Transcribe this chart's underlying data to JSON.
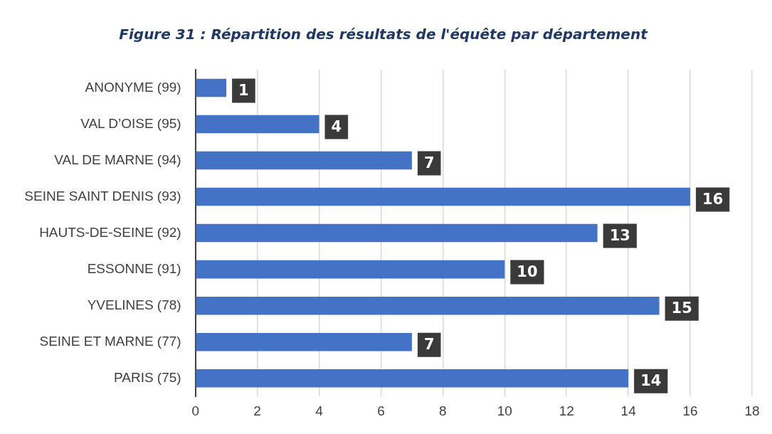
{
  "chart_data": {
    "type": "bar",
    "orientation": "horizontal",
    "title": "Figure 31 : Répartition des résultats de l'équête par département",
    "categories": [
      "ANONYME (99)",
      "VAL D’OISE (95)",
      "VAL DE MARNE (94)",
      "SEINE SAINT DENIS (93)",
      "HAUTS-DE-SEINE (92)",
      "ESSONNE (91)",
      "YVELINES (78)",
      "SEINE ET MARNE (77)",
      "PARIS (75)"
    ],
    "values": [
      1,
      4,
      7,
      16,
      13,
      10,
      15,
      7,
      14
    ],
    "color": "#4472c4",
    "xlim": [
      0,
      18
    ],
    "xticks": [
      0,
      2,
      4,
      6,
      8,
      10,
      12,
      14,
      16,
      18
    ],
    "grid": "x",
    "data_labels": true,
    "legend": false
  }
}
